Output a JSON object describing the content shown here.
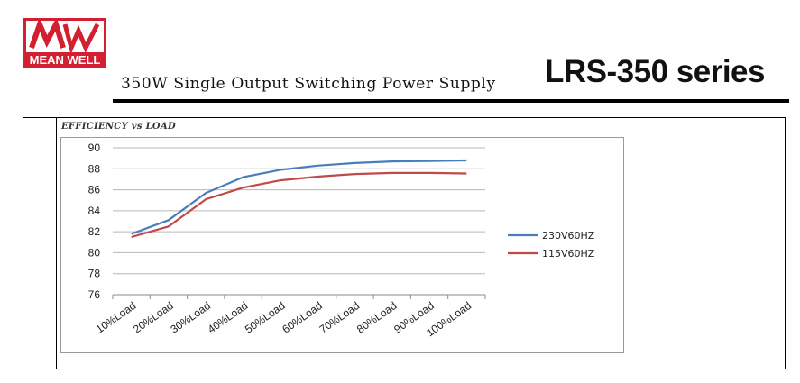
{
  "header": {
    "brand": "MEAN WELL",
    "subtitle": "350W Single Output Switching Power Supply",
    "series_title": "LRS-350  series"
  },
  "colors": {
    "brand_red": "#d22030",
    "series_230": "#4a7ebb",
    "series_115": "#be4b48",
    "grid": "#b7b7b7"
  },
  "chart_data": {
    "type": "line",
    "title": "EFFICIENCY vs LOAD",
    "categories": [
      "10%Load",
      "20%Load",
      "30%Load",
      "40%Load",
      "50%Load",
      "60%Load",
      "70%Load",
      "80%Load",
      "90%Load",
      "100%Load"
    ],
    "series": [
      {
        "name": "230V60HZ",
        "values": [
          81.8,
          83.1,
          85.7,
          87.2,
          87.9,
          88.3,
          88.55,
          88.7,
          88.75,
          88.8
        ]
      },
      {
        "name": "115V60HZ",
        "values": [
          81.5,
          82.5,
          85.1,
          86.2,
          86.9,
          87.25,
          87.5,
          87.6,
          87.6,
          87.55
        ]
      }
    ],
    "ylim": [
      76,
      90
    ],
    "yticks": [
      76,
      78,
      80,
      82,
      84,
      86,
      88,
      90
    ],
    "grid": true,
    "legend": "right"
  }
}
